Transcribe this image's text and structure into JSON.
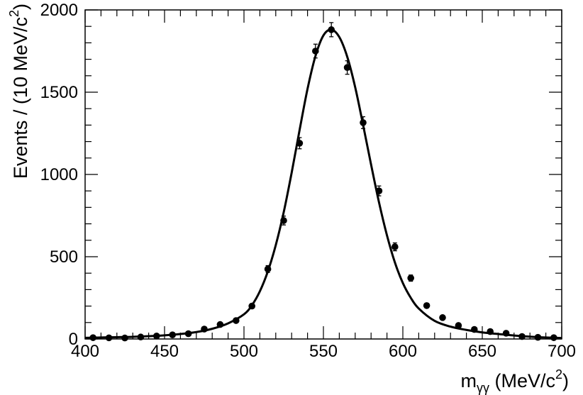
{
  "chart_data": {
    "type": "scatter",
    "title": "",
    "xlabel": {
      "base": "m",
      "sub": "γγ",
      "rest": " (MeV/c",
      "sup": "2",
      "close": ")"
    },
    "ylabel": {
      "base": "Events / (10 MeV/c",
      "sup": "2",
      "close": ")"
    },
    "xlim": [
      400,
      700
    ],
    "ylim": [
      0,
      2000
    ],
    "xticks": [
      400,
      450,
      500,
      550,
      600,
      650,
      700
    ],
    "yticks": [
      0,
      500,
      1000,
      1500,
      2000
    ],
    "grid": false,
    "legend": "none",
    "colors": {
      "points": "#000000",
      "fit": "#000000",
      "frame": "#000000"
    },
    "series": [
      {
        "kind": "points-with-errors",
        "x": [
          405,
          415,
          425,
          435,
          445,
          455,
          465,
          475,
          485,
          495,
          505,
          515,
          525,
          535,
          545,
          555,
          565,
          575,
          585,
          595,
          605,
          615,
          625,
          635,
          645,
          655,
          665,
          675,
          685,
          695
        ],
        "y": [
          8,
          7,
          6,
          12,
          18,
          25,
          32,
          60,
          88,
          112,
          200,
          425,
          720,
          1190,
          1750,
          1880,
          1650,
          1315,
          900,
          560,
          370,
          203,
          130,
          82,
          58,
          45,
          35,
          15,
          10,
          8
        ],
        "yerr": [
          3,
          3,
          2,
          3,
          4,
          5,
          6,
          8,
          9,
          11,
          14,
          21,
          27,
          34,
          42,
          43,
          41,
          36,
          30,
          24,
          19,
          14,
          11,
          9,
          8,
          7,
          6,
          4,
          3,
          3
        ]
      },
      {
        "kind": "fit-curve",
        "x": [
          400,
          410,
          420,
          430,
          440,
          450,
          460,
          470,
          480,
          490,
          500,
          505,
          510,
          515,
          520,
          525,
          530,
          535,
          540,
          545,
          550,
          555,
          560,
          565,
          570,
          575,
          580,
          585,
          590,
          595,
          600,
          605,
          610,
          620,
          630,
          640,
          650,
          660,
          670,
          680,
          690,
          700
        ],
        "y": [
          7,
          9,
          11,
          13,
          17,
          22,
          30,
          42,
          62,
          95,
          150,
          205,
          290,
          410,
          570,
          770,
          1010,
          1270,
          1520,
          1720,
          1845,
          1880,
          1835,
          1715,
          1530,
          1300,
          1060,
          830,
          630,
          465,
          340,
          250,
          185,
          110,
          75,
          55,
          40,
          30,
          21,
          14,
          9,
          6
        ]
      }
    ]
  }
}
